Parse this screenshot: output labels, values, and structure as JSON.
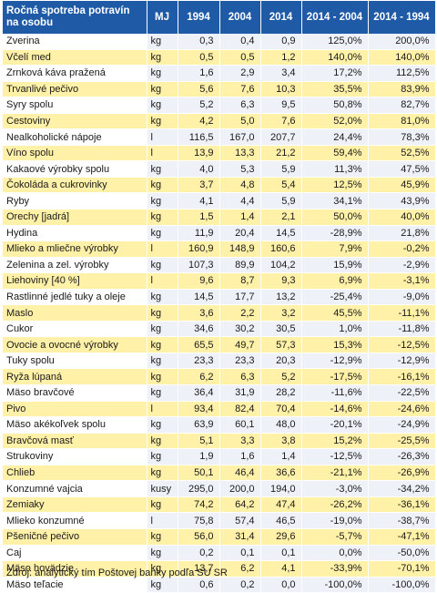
{
  "table": {
    "headers": [
      "Ročná spotreba potravín na osobu",
      "MJ",
      "1994",
      "2004",
      "2014",
      "2014 - 2004",
      "2014 - 1994"
    ],
    "rows": [
      [
        "Zverina",
        "kg",
        "0,3",
        "0,4",
        "0,9",
        "125,0%",
        "200,0%"
      ],
      [
        "Včelí med",
        "kg",
        "0,5",
        "0,5",
        "1,2",
        "140,0%",
        "140,0%"
      ],
      [
        "Zrnková káva pražená",
        "kg",
        "1,6",
        "2,9",
        "3,4",
        "17,2%",
        "112,5%"
      ],
      [
        "Trvanlivé pečivo",
        "kg",
        "5,6",
        "7,6",
        "10,3",
        "35,5%",
        "83,9%"
      ],
      [
        "Syry spolu",
        "kg",
        "5,2",
        "6,3",
        "9,5",
        "50,8%",
        "82,7%"
      ],
      [
        "Cestoviny",
        "kg",
        "4,2",
        "5,0",
        "7,6",
        "52,0%",
        "81,0%"
      ],
      [
        "Nealkoholické nápoje",
        "l",
        "116,5",
        "167,0",
        "207,7",
        "24,4%",
        "78,3%"
      ],
      [
        "Víno spolu",
        "l",
        "13,9",
        "13,3",
        "21,2",
        "59,4%",
        "52,5%"
      ],
      [
        "Kakaové výrobky spolu",
        "kg",
        "4,0",
        "5,3",
        "5,9",
        "11,3%",
        "47,5%"
      ],
      [
        "Čokoláda a cukrovinky",
        "kg",
        "3,7",
        "4,8",
        "5,4",
        "12,5%",
        "45,9%"
      ],
      [
        "Ryby",
        "kg",
        "4,1",
        "4,4",
        "5,9",
        "34,1%",
        "43,9%"
      ],
      [
        "Orechy [jadrá]",
        "kg",
        "1,5",
        "1,4",
        "2,1",
        "50,0%",
        "40,0%"
      ],
      [
        "Hydina",
        "kg",
        "11,9",
        "20,4",
        "14,5",
        "-28,9%",
        "21,8%"
      ],
      [
        "Mlieko a mliečne výrobky",
        "l",
        "160,9",
        "148,9",
        "160,6",
        "7,9%",
        "-0,2%"
      ],
      [
        "Zelenina a zel. výrobky",
        "kg",
        "107,3",
        "89,9",
        "104,2",
        "15,9%",
        "-2,9%"
      ],
      [
        "Liehoviny [40 %]",
        "l",
        "9,6",
        "8,7",
        "9,3",
        "6,9%",
        "-3,1%"
      ],
      [
        "Rastlinné jedlé tuky a oleje",
        "kg",
        "14,5",
        "17,7",
        "13,2",
        "-25,4%",
        "-9,0%"
      ],
      [
        "Maslo",
        "kg",
        "3,6",
        "2,2",
        "3,2",
        "45,5%",
        "-11,1%"
      ],
      [
        "Cukor",
        "kg",
        "34,6",
        "30,2",
        "30,5",
        "1,0%",
        "-11,8%"
      ],
      [
        "Ovocie a ovocné výrobky",
        "kg",
        "65,5",
        "49,7",
        "57,3",
        "15,3%",
        "-12,5%"
      ],
      [
        "Tuky spolu",
        "kg",
        "23,3",
        "23,3",
        "20,3",
        "-12,9%",
        "-12,9%"
      ],
      [
        "Ryža lúpaná",
        "kg",
        "6,2",
        "6,3",
        "5,2",
        "-17,5%",
        "-16,1%"
      ],
      [
        "Mäso bravčové",
        "kg",
        "36,4",
        "31,9",
        "28,2",
        "-11,6%",
        "-22,5%"
      ],
      [
        "Pivo",
        "l",
        "93,4",
        "82,4",
        "70,4",
        "-14,6%",
        "-24,6%"
      ],
      [
        "Mäso akékoľvek spolu",
        "kg",
        "63,9",
        "60,1",
        "48,0",
        "-20,1%",
        "-24,9%"
      ],
      [
        "Bravčová masť",
        "kg",
        "5,1",
        "3,3",
        "3,8",
        "15,2%",
        "-25,5%"
      ],
      [
        "Strukoviny",
        "kg",
        "1,9",
        "1,6",
        "1,4",
        "-12,5%",
        "-26,3%"
      ],
      [
        "Chlieb",
        "kg",
        "50,1",
        "46,4",
        "36,6",
        "-21,1%",
        "-26,9%"
      ],
      [
        "Konzumné vajcia",
        "kusy",
        "295,0",
        "200,0",
        "194,0",
        "-3,0%",
        "-34,2%"
      ],
      [
        "Zemiaky",
        "kg",
        "74,2",
        "64,2",
        "47,4",
        "-26,2%",
        "-36,1%"
      ],
      [
        "Mlieko konzumné",
        "l",
        "75,8",
        "57,4",
        "46,5",
        "-19,0%",
        "-38,7%"
      ],
      [
        "Pšeničné pečivo",
        "kg",
        "56,0",
        "31,4",
        "29,6",
        "-5,7%",
        "-47,1%"
      ],
      [
        "Caj",
        "kg",
        "0,2",
        "0,1",
        "0,1",
        "0,0%",
        "-50,0%"
      ],
      [
        "Mäso hovädzie",
        "kg",
        "13,7",
        "6,2",
        "4,1",
        "-33,9%",
        "-70,1%"
      ],
      [
        "Mäso teľacie",
        "kg",
        "0,6",
        "0,2",
        "0,0",
        "-100,0%",
        "-100,0%"
      ]
    ]
  },
  "source": "Zdroj: analytický tím Poštovej banky podľa SU SR",
  "colors": {
    "header_bg": "#1f5aa6",
    "header_text": "#ffffff",
    "stripe": "#fff1a8",
    "light": "#eef2f8"
  }
}
